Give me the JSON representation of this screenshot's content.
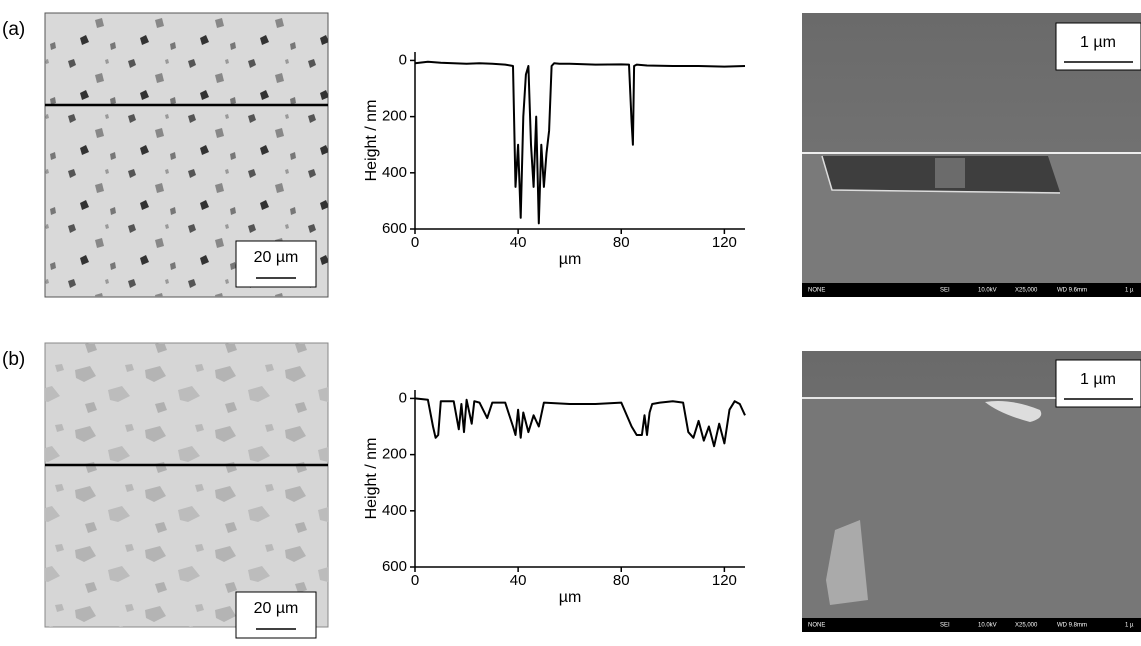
{
  "chart_data": [
    {
      "type": "line",
      "x_label": "µm",
      "y_label": "Height / nm",
      "xlim": [
        0,
        128
      ],
      "ylim": [
        600,
        -30
      ],
      "xticks": [
        0,
        40,
        80,
        120
      ],
      "yticks": [
        0,
        200,
        400,
        600
      ],
      "series": [
        {
          "color": "#000000",
          "x": [
            0,
            5,
            10,
            15,
            20,
            25,
            30,
            35,
            37,
            38,
            39,
            40,
            41,
            42,
            43,
            44,
            45,
            46,
            47,
            48,
            49,
            50,
            51,
            52,
            53,
            54,
            56,
            60,
            70,
            80,
            83,
            84,
            84.5,
            85,
            86,
            90,
            100,
            110,
            120,
            128
          ],
          "values": [
            10,
            5,
            8,
            10,
            12,
            10,
            12,
            15,
            18,
            20,
            450,
            300,
            560,
            200,
            50,
            20,
            300,
            450,
            200,
            580,
            300,
            450,
            330,
            250,
            20,
            10,
            12,
            12,
            15,
            14,
            15,
            220,
            300,
            20,
            15,
            18,
            20,
            20,
            22,
            20
          ]
        }
      ]
    },
    {
      "type": "line",
      "x_label": "µm",
      "y_label": "Height / nm",
      "xlim": [
        0,
        128
      ],
      "ylim": [
        600,
        -30
      ],
      "xticks": [
        0,
        40,
        80,
        120
      ],
      "yticks": [
        0,
        200,
        400,
        600
      ],
      "series": [
        {
          "color": "#000000",
          "x": [
            0,
            5,
            7,
            8,
            9,
            10,
            12,
            15,
            17,
            18,
            19,
            20,
            22,
            23,
            25,
            28,
            30,
            35,
            38,
            39,
            40,
            41,
            42,
            44,
            46,
            48,
            50,
            60,
            70,
            80,
            84,
            86,
            88,
            89,
            90,
            91,
            92,
            95,
            100,
            104,
            106,
            108,
            110,
            112,
            114,
            116,
            118,
            120,
            122,
            124,
            126,
            128
          ],
          "values": [
            0,
            5,
            100,
            140,
            130,
            10,
            10,
            10,
            110,
            20,
            120,
            5,
            90,
            10,
            15,
            70,
            15,
            15,
            100,
            130,
            40,
            140,
            50,
            120,
            60,
            100,
            15,
            20,
            20,
            15,
            100,
            130,
            130,
            60,
            130,
            50,
            20,
            15,
            10,
            15,
            120,
            140,
            80,
            150,
            100,
            170,
            90,
            160,
            40,
            10,
            20,
            60
          ]
        }
      ]
    }
  ],
  "panels": [
    {
      "label": "(a)",
      "afm_scale": "20 µm",
      "sem_scale": "1 µm",
      "sem_footer": [
        "NONE",
        "SEI",
        "10.0kV",
        "X25,000",
        "WD 9.6mm",
        "1 µ"
      ]
    },
    {
      "label": "(b)",
      "afm_scale": "20 µm",
      "sem_scale": "1 µm",
      "sem_footer": [
        "NONE",
        "SEI",
        "10.0kV",
        "X25,000",
        "WD 9.8mm",
        "1 µ"
      ]
    }
  ]
}
